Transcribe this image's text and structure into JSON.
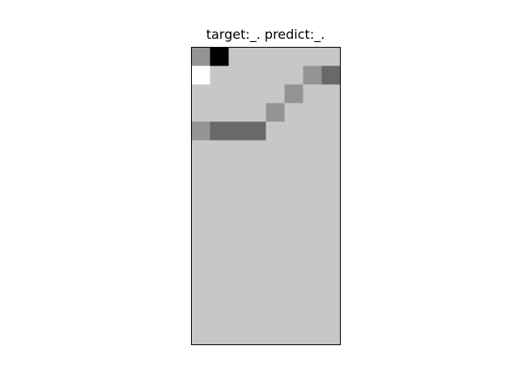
{
  "chart_data": {
    "type": "heatmap",
    "title": "target:_. predict:_.",
    "xlabel": "",
    "ylabel": "",
    "rows": 16,
    "cols": 8,
    "colormap": "gray",
    "background_value": 0.78,
    "cells": [
      {
        "row": 0,
        "col": 0,
        "value": 0.58
      },
      {
        "row": 0,
        "col": 1,
        "value": 0.0
      },
      {
        "row": 1,
        "col": 0,
        "value": 1.0
      },
      {
        "row": 1,
        "col": 6,
        "value": 0.58
      },
      {
        "row": 1,
        "col": 7,
        "value": 0.41
      },
      {
        "row": 2,
        "col": 5,
        "value": 0.58
      },
      {
        "row": 3,
        "col": 4,
        "value": 0.58
      },
      {
        "row": 4,
        "col": 0,
        "value": 0.58
      },
      {
        "row": 4,
        "col": 1,
        "value": 0.41
      },
      {
        "row": 4,
        "col": 2,
        "value": 0.41
      },
      {
        "row": 4,
        "col": 3,
        "value": 0.41
      }
    ],
    "axes_visible": false,
    "grid": false
  }
}
